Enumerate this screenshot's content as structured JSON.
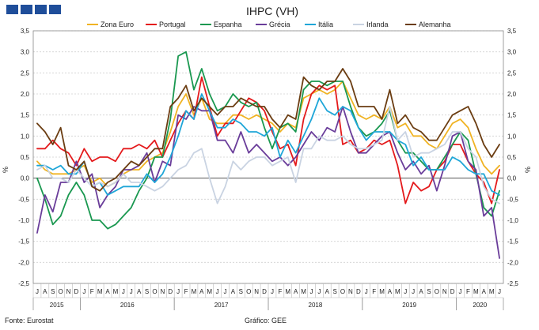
{
  "logo": {
    "color": "#1f4e9a"
  },
  "footer": {
    "source": "Fonte: Eurostat",
    "credit": "Gráfico: GEE"
  },
  "chart_data": {
    "type": "line",
    "title": "IHPC (VH)",
    "ylabel_left": "%",
    "ylabel_right": "%",
    "ylim": [
      -2.5,
      3.5
    ],
    "yticks": [
      "-2,5",
      "-2,0",
      "-1,5",
      "-1,0",
      "-0,5",
      "0,0",
      "0,5",
      "1,0",
      "1,5",
      "2,0",
      "2,5",
      "3,0",
      "3,5"
    ],
    "grid": true,
    "legend": "top",
    "x": [
      "J",
      "A",
      "S",
      "O",
      "N",
      "D",
      "J",
      "F",
      "M",
      "A",
      "M",
      "J",
      "J",
      "A",
      "S",
      "O",
      "N",
      "D",
      "J",
      "F",
      "M",
      "A",
      "M",
      "J",
      "J",
      "A",
      "S",
      "O",
      "N",
      "D",
      "J",
      "F",
      "M",
      "A",
      "M",
      "J",
      "J",
      "A",
      "S",
      "O",
      "N",
      "D",
      "J",
      "F",
      "M",
      "A",
      "M",
      "J",
      "J",
      "A",
      "S",
      "O",
      "N",
      "D",
      "J",
      "F",
      "M",
      "A",
      "M",
      "J"
    ],
    "year_labels": [
      {
        "label": "2015",
        "start": 0,
        "end": 5
      },
      {
        "label": "2016",
        "start": 6,
        "end": 17
      },
      {
        "label": "2017",
        "start": 18,
        "end": 29
      },
      {
        "label": "2018",
        "start": 30,
        "end": 41
      },
      {
        "label": "2019",
        "start": 42,
        "end": 53
      },
      {
        "label": "2020",
        "start": 54,
        "end": 59
      }
    ],
    "series": [
      {
        "name": "Zona Euro",
        "color": "#f0b323",
        "values": [
          0.4,
          0.2,
          0.1,
          0.1,
          0.1,
          0.2,
          0.3,
          -0.1,
          0.0,
          -0.2,
          -0.1,
          0.1,
          0.2,
          0.2,
          0.4,
          0.5,
          0.6,
          1.1,
          1.7,
          2.0,
          1.5,
          1.9,
          1.4,
          1.3,
          1.3,
          1.5,
          1.5,
          1.4,
          1.5,
          1.4,
          1.3,
          1.1,
          1.3,
          1.2,
          1.9,
          2.0,
          2.1,
          2.0,
          2.1,
          2.3,
          1.9,
          1.5,
          1.4,
          1.5,
          1.4,
          1.7,
          1.2,
          1.3,
          1.0,
          1.0,
          0.8,
          0.7,
          1.0,
          1.3,
          1.4,
          1.2,
          0.7,
          0.3,
          0.1,
          0.3
        ]
      },
      {
        "name": "Portugal",
        "color": "#e41a1c",
        "values": [
          0.7,
          0.7,
          0.9,
          0.7,
          0.6,
          0.3,
          0.7,
          0.4,
          0.5,
          0.5,
          0.4,
          0.7,
          0.7,
          0.8,
          0.7,
          0.9,
          0.5,
          0.9,
          1.3,
          1.6,
          1.4,
          2.4,
          1.7,
          1.0,
          1.3,
          1.3,
          1.6,
          1.9,
          1.8,
          1.6,
          1.1,
          0.7,
          0.8,
          0.3,
          1.4,
          2.0,
          2.2,
          2.1,
          2.2,
          0.8,
          0.9,
          0.6,
          0.7,
          0.9,
          0.8,
          0.9,
          0.3,
          -0.6,
          -0.1,
          -0.3,
          -0.2,
          0.2,
          0.4,
          0.8,
          0.8,
          0.4,
          0.1,
          -0.1,
          -0.6,
          0.2
        ]
      },
      {
        "name": "Espanha",
        "color": "#1a9850",
        "values": [
          0.0,
          -0.5,
          -1.1,
          -0.9,
          -0.4,
          -0.1,
          -0.4,
          -1.0,
          -1.0,
          -1.2,
          -1.1,
          -0.9,
          -0.7,
          -0.3,
          0.0,
          0.5,
          0.5,
          1.4,
          2.9,
          3.0,
          2.1,
          2.6,
          2.0,
          1.6,
          1.7,
          2.0,
          1.8,
          1.7,
          1.8,
          1.2,
          0.7,
          1.2,
          1.3,
          1.1,
          2.1,
          2.3,
          2.3,
          2.2,
          2.3,
          2.3,
          1.7,
          1.2,
          1.0,
          1.1,
          1.3,
          1.6,
          0.9,
          0.6,
          0.6,
          0.4,
          0.2,
          0.2,
          0.5,
          0.8,
          1.1,
          0.9,
          0.1,
          -0.7,
          -0.9,
          -0.3
        ]
      },
      {
        "name": "Grécia",
        "color": "#6a3d9a",
        "values": [
          -1.3,
          -0.4,
          -0.8,
          -0.1,
          -0.1,
          0.4,
          -0.1,
          0.1,
          -0.7,
          -0.4,
          -0.2,
          0.2,
          0.2,
          0.3,
          0.6,
          -0.1,
          0.4,
          0.3,
          1.5,
          1.4,
          1.7,
          1.6,
          1.6,
          0.9,
          0.9,
          0.6,
          1.1,
          0.6,
          0.8,
          0.6,
          0.4,
          0.5,
          0.3,
          0.5,
          0.8,
          1.1,
          0.9,
          1.2,
          1.1,
          1.7,
          1.1,
          0.6,
          0.6,
          0.8,
          1.0,
          1.1,
          0.6,
          0.2,
          0.4,
          0.1,
          0.3,
          -0.3,
          0.3,
          1.0,
          1.1,
          0.4,
          0.2,
          -0.9,
          -0.7,
          -1.9
        ]
      },
      {
        "name": "Itália",
        "color": "#1fa6d8",
        "values": [
          0.3,
          0.3,
          0.2,
          0.3,
          0.1,
          0.1,
          0.4,
          -0.2,
          -0.1,
          -0.4,
          -0.3,
          -0.2,
          -0.2,
          -0.2,
          0.1,
          -0.1,
          0.1,
          0.5,
          1.0,
          1.6,
          1.4,
          2.0,
          1.6,
          1.2,
          1.2,
          1.4,
          1.3,
          1.1,
          1.1,
          1.0,
          1.2,
          0.5,
          0.9,
          0.6,
          1.0,
          1.4,
          1.9,
          1.6,
          1.5,
          1.7,
          1.6,
          1.2,
          0.9,
          1.1,
          1.1,
          1.1,
          0.9,
          0.8,
          0.3,
          0.5,
          0.2,
          0.2,
          0.2,
          0.5,
          0.4,
          0.2,
          0.1,
          0.1,
          -0.3,
          -0.4
        ]
      },
      {
        "name": "Irlanda",
        "color": "#c9d3e2",
        "values": [
          0.2,
          0.3,
          0.0,
          0.0,
          -0.1,
          0.2,
          0.0,
          -0.2,
          -0.1,
          -0.2,
          -0.1,
          0.1,
          -0.1,
          -0.1,
          -0.2,
          -0.3,
          -0.2,
          0.0,
          0.2,
          0.3,
          0.6,
          0.7,
          0.0,
          -0.6,
          -0.2,
          0.4,
          0.2,
          0.4,
          0.5,
          0.5,
          0.3,
          0.4,
          0.5,
          -0.1,
          0.7,
          0.7,
          1.0,
          0.9,
          0.9,
          1.0,
          0.8,
          0.7,
          0.7,
          0.8,
          0.9,
          1.7,
          0.9,
          1.1,
          0.5,
          0.6,
          0.6,
          0.7,
          0.8,
          1.1,
          1.1,
          0.7,
          0.5,
          -0.2,
          -0.5,
          -0.6
        ]
      },
      {
        "name": "Alemanha",
        "color": "#6b3d12",
        "values": [
          1.3,
          1.1,
          0.8,
          1.2,
          0.3,
          0.2,
          0.4,
          -0.2,
          -0.3,
          -0.1,
          0.0,
          0.2,
          0.4,
          0.3,
          0.5,
          0.7,
          0.7,
          1.7,
          1.9,
          2.2,
          1.6,
          1.9,
          1.7,
          1.5,
          1.7,
          1.7,
          1.9,
          1.8,
          1.7,
          1.7,
          1.4,
          1.2,
          1.5,
          1.4,
          2.4,
          2.2,
          2.1,
          2.3,
          2.3,
          2.6,
          2.3,
          1.7,
          1.7,
          1.7,
          1.4,
          2.1,
          1.3,
          1.5,
          1.2,
          1.1,
          0.9,
          0.9,
          1.2,
          1.5,
          1.6,
          1.7,
          1.3,
          0.8,
          0.5,
          0.8
        ]
      }
    ]
  }
}
